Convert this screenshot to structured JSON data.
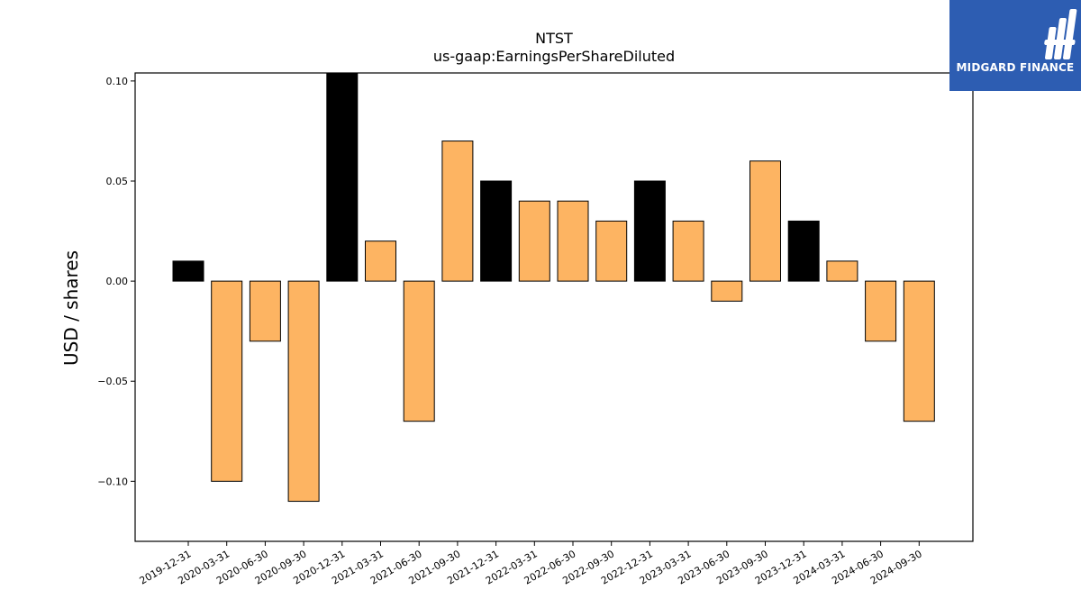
{
  "chart_data": {
    "type": "bar",
    "title": "NTST",
    "subtitle": "us-gaap:EarningsPerShareDiluted",
    "xlabel": "",
    "ylabel": "USD / shares",
    "ylim": [
      -0.13,
      0.104
    ],
    "yticks": [
      0.1,
      0.05,
      0.0,
      -0.05,
      -0.1
    ],
    "ytick_labels": [
      "0.10",
      "0.05",
      "0.00",
      "−0.05",
      "−0.10"
    ],
    "grid": false,
    "categories": [
      "2019-12-31",
      "2020-03-31",
      "2020-06-30",
      "2020-09-30",
      "2020-12-31",
      "2021-03-31",
      "2021-06-30",
      "2021-09-30",
      "2021-12-31",
      "2022-03-31",
      "2022-06-30",
      "2022-09-30",
      "2022-12-31",
      "2023-03-31",
      "2023-06-30",
      "2023-09-30",
      "2023-12-31",
      "2024-03-31",
      "2024-06-30",
      "2024-09-30"
    ],
    "values": [
      0.01,
      -0.1,
      -0.03,
      -0.11,
      0.11,
      0.02,
      -0.07,
      0.07,
      0.05,
      0.04,
      0.04,
      0.03,
      0.05,
      0.03,
      -0.01,
      0.06,
      0.03,
      0.01,
      -0.03,
      -0.07
    ],
    "colors": [
      "#000000",
      "#fdb462",
      "#fdb462",
      "#fdb462",
      "#000000",
      "#fdb462",
      "#fdb462",
      "#fdb462",
      "#000000",
      "#fdb462",
      "#fdb462",
      "#fdb462",
      "#000000",
      "#fdb462",
      "#fdb462",
      "#fdb462",
      "#000000",
      "#fdb462",
      "#fdb462",
      "#fdb462"
    ]
  },
  "logo": {
    "text": "MIDGARD FINANCE",
    "background": "#2d5db2"
  }
}
